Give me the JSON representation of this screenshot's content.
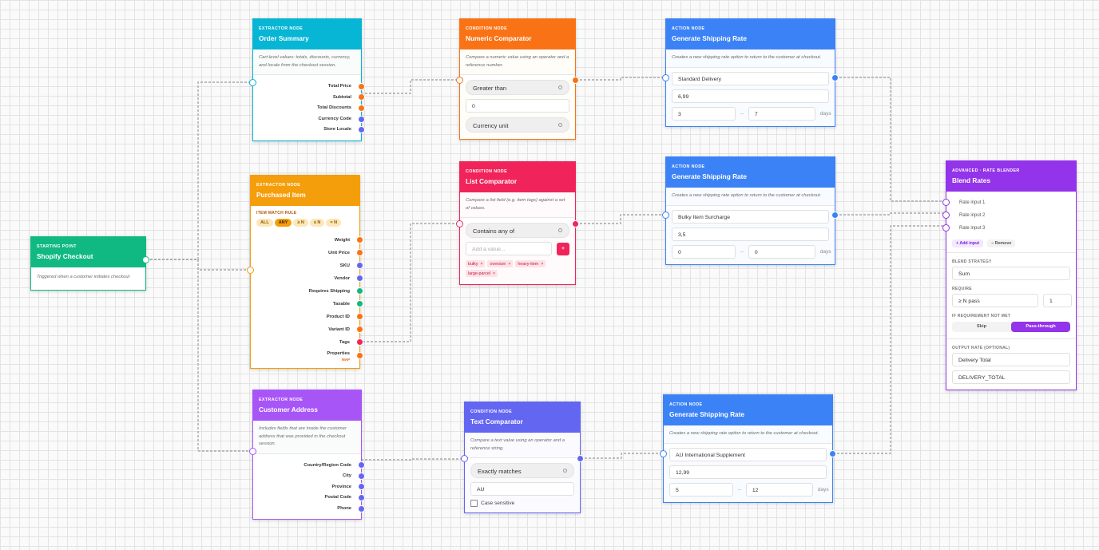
{
  "nodes": [
    {
      "kind": "STARTING POINT",
      "title": "Shopify Checkout",
      "description": "Triggered when a customer initiates checkout"
    },
    {
      "kind": "EXTRACTOR NODE",
      "title": "Order Summary",
      "description": "Cart-level values: totals, discounts, currency, and locale from the checkout session.",
      "outputs": [
        "Total Price",
        "Subtotal",
        "Total Discounts",
        "Currency Code",
        "Store Locale"
      ]
    },
    {
      "kind": "EXTRACTOR NODE",
      "title": "Purchased Item",
      "match_rule_label": "ITEM MATCH RULE",
      "match_rule_options": [
        "ALL",
        "ANY",
        "≥ N",
        "≤ N",
        "= N"
      ],
      "outputs": [
        "Weight",
        "Unit Price",
        "SKU",
        "Vendor",
        "Requires Shipping",
        "Taxable",
        "Product ID",
        "Variant ID",
        "Tags",
        "Properties"
      ],
      "properties_badge": "MAP"
    },
    {
      "kind": "EXTRACTOR NODE",
      "title": "Customer Address",
      "description": "Includes fields that are inside the customer address that was provided in the checkout session.",
      "outputs": [
        "Country/Region Code",
        "City",
        "Province",
        "Postal Code",
        "Phone"
      ]
    },
    {
      "kind": "CONDITION NODE",
      "title": "Numeric Comparator",
      "description": "Compare a numeric value using an operator and a reference number.",
      "operator": "Greater than",
      "value": "0",
      "unit": "Currency unit"
    },
    {
      "kind": "CONDITION NODE",
      "title": "List Comparator",
      "description": "Compare a list field (e.g. item tags) against a set of values.",
      "operator": "Contains any of",
      "placeholder": "Add a value...",
      "add_button": "+",
      "tags": [
        "bulky",
        "oversize",
        "heavy-item",
        "large-parcel"
      ],
      "tag_remove": "×"
    },
    {
      "kind": "CONDITION NODE",
      "title": "Text Comparator",
      "description": "Compare a text value using an operator and a reference string.",
      "operator": "Exactly matches",
      "value": "AU",
      "checkbox": "Case sensitive"
    },
    {
      "kind": "ACTION NODE",
      "title": "Generate Shipping Rate",
      "description": "Creates a new shipping rate option to return to the customer at checkout.",
      "rate_name": "Standard Delivery",
      "price": "6,99",
      "min_days": "3",
      "separator": "–",
      "max_days": "7",
      "unit": "days"
    },
    {
      "kind": "ACTION NODE",
      "title": "Generate Shipping Rate",
      "description": "Creates a new shipping rate option to return to the customer at checkout.",
      "rate_name": "Bulky Item Surcharge",
      "price": "3,5",
      "min_days": "0",
      "separator": "–",
      "max_days": "0",
      "unit": "days"
    },
    {
      "kind": "ACTION NODE",
      "title": "Generate Shipping Rate",
      "description": "Creates a new shipping rate option to return to the customer at checkout.",
      "rate_name": "AU International Supplement",
      "price": "12,99",
      "min_days": "5",
      "separator": "–",
      "max_days": "12",
      "unit": "days"
    },
    {
      "kind": "ADVANCED · RATE BLENDER",
      "title": "Blend Rates",
      "inputs": [
        "Rate input 1",
        "Rate input 2",
        "Rate input 3"
      ],
      "add_button": "+ Add input",
      "remove_button": "− Remove",
      "strategy_label": "BLEND STRATEGY",
      "strategy": "Sum",
      "require_label": "REQUIRE",
      "require": "≥ N pass",
      "require_n": "1",
      "fallback_label": "IF REQUIREMENT NOT MET",
      "fallback_options": [
        "Skip",
        "Pass-through"
      ],
      "output_label": "OUTPUT RATE (OPTIONAL)",
      "output_name": "Delivery Total",
      "output_key": "DELIVERY_TOTAL"
    }
  ]
}
